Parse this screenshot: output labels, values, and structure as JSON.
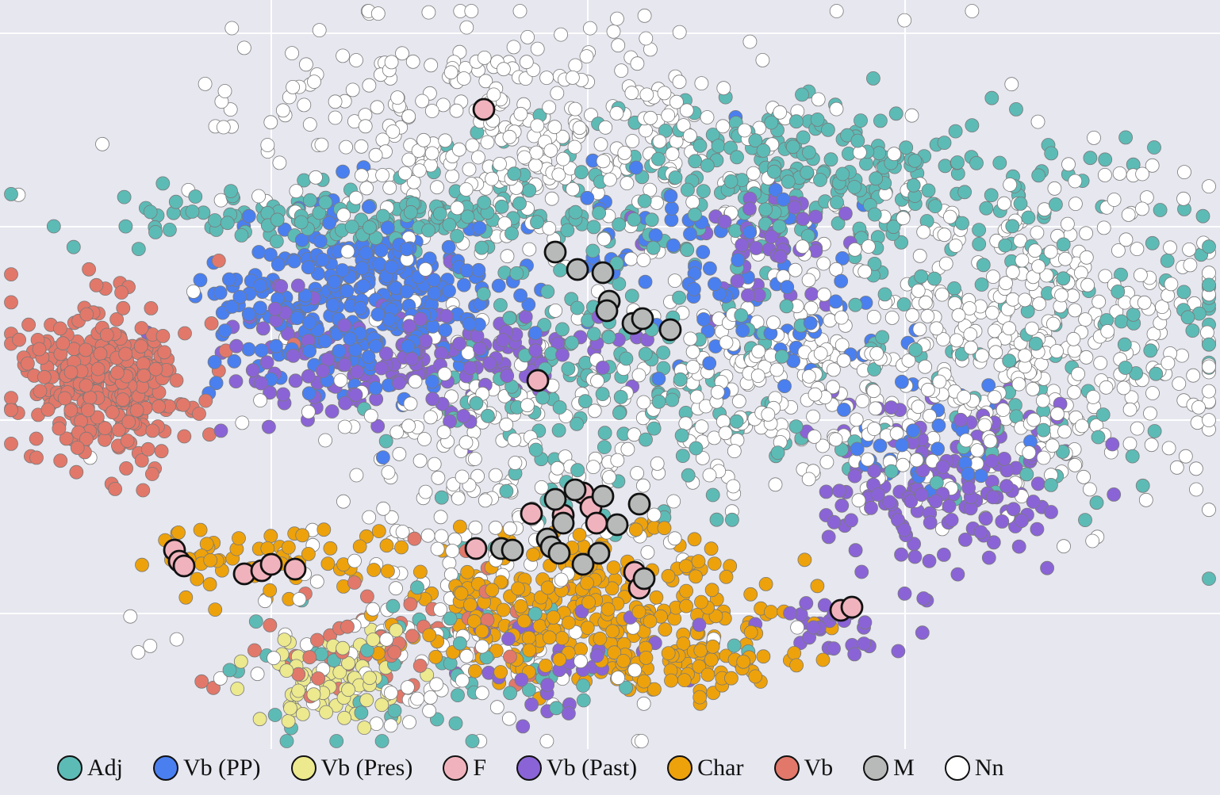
{
  "chart_data": {
    "type": "scatter",
    "title": "",
    "xlabel": "",
    "ylabel": "",
    "grid": true,
    "axes_ticks_visible": false,
    "legend_position": "bottom",
    "series": [
      {
        "name": "Adj",
        "color": "#5dbbb6",
        "highlight": false
      },
      {
        "name": "Vb (PP)",
        "color": "#4a7ff0",
        "highlight": false
      },
      {
        "name": "Vb (Pres)",
        "color": "#ece98e",
        "highlight": false
      },
      {
        "name": "F",
        "color": "#f0b3bd",
        "highlight": true
      },
      {
        "name": "Vb (Past)",
        "color": "#8a64d6",
        "highlight": false
      },
      {
        "name": "Char",
        "color": "#eda20c",
        "highlight": false
      },
      {
        "name": "Vb",
        "color": "#e2786a",
        "highlight": false
      },
      {
        "name": "M",
        "color": "#b8b9b9",
        "highlight": true
      },
      {
        "name": "Nn",
        "color": "#ffffff",
        "highlight": false
      }
    ],
    "clusters": [
      {
        "series": "Nn",
        "cx": 650,
        "cy": 165,
        "sx": 180,
        "sy": 70,
        "n": 380
      },
      {
        "series": "Nn",
        "cx": 1300,
        "cy": 420,
        "sx": 130,
        "sy": 110,
        "n": 420
      },
      {
        "series": "Nn",
        "cx": 1000,
        "cy": 470,
        "sx": 110,
        "sy": 80,
        "n": 220
      },
      {
        "series": "Nn",
        "cx": 640,
        "cy": 560,
        "sx": 140,
        "sy": 110,
        "n": 250
      },
      {
        "series": "Nn",
        "cx": 560,
        "cy": 820,
        "sx": 150,
        "sy": 70,
        "n": 90
      },
      {
        "series": "Adj",
        "cx": 1000,
        "cy": 220,
        "sx": 150,
        "sy": 45,
        "n": 260
      },
      {
        "series": "Adj",
        "cx": 460,
        "cy": 275,
        "sx": 150,
        "sy": 20,
        "n": 150
      },
      {
        "series": "Adj",
        "cx": 760,
        "cy": 470,
        "sx": 130,
        "sy": 120,
        "n": 200
      },
      {
        "series": "Adj",
        "cx": 1280,
        "cy": 430,
        "sx": 170,
        "sy": 110,
        "n": 150
      },
      {
        "series": "Adj",
        "cx": 560,
        "cy": 840,
        "sx": 130,
        "sy": 60,
        "n": 60
      },
      {
        "series": "Vb (PP)",
        "cx": 450,
        "cy": 380,
        "sx": 90,
        "sy": 55,
        "n": 330
      },
      {
        "series": "Vb (PP)",
        "cx": 870,
        "cy": 330,
        "sx": 90,
        "sy": 60,
        "n": 70
      },
      {
        "series": "Vb (PP)",
        "cx": 1150,
        "cy": 560,
        "sx": 60,
        "sy": 40,
        "n": 40
      },
      {
        "series": "Vb (PP)",
        "cx": 1000,
        "cy": 440,
        "sx": 60,
        "sy": 40,
        "n": 30
      },
      {
        "series": "Vb (Past)",
        "cx": 500,
        "cy": 455,
        "sx": 110,
        "sy": 40,
        "n": 150
      },
      {
        "series": "Vb (Past)",
        "cx": 1200,
        "cy": 600,
        "sx": 90,
        "sy": 60,
        "n": 160
      },
      {
        "series": "Vb (Past)",
        "cx": 960,
        "cy": 320,
        "sx": 60,
        "sy": 40,
        "n": 50
      },
      {
        "series": "Vb (Past)",
        "cx": 690,
        "cy": 840,
        "sx": 60,
        "sy": 30,
        "n": 40
      },
      {
        "series": "Vb (Past)",
        "cx": 1050,
        "cy": 790,
        "sx": 35,
        "sy": 15,
        "n": 25
      },
      {
        "series": "Vb (Past)",
        "cx": 680,
        "cy": 440,
        "sx": 60,
        "sy": 25,
        "n": 30
      },
      {
        "series": "Vb",
        "cx": 135,
        "cy": 480,
        "sx": 55,
        "sy": 50,
        "n": 320
      },
      {
        "series": "Vb",
        "cx": 480,
        "cy": 800,
        "sx": 100,
        "sy": 50,
        "n": 60
      },
      {
        "series": "Char",
        "cx": 740,
        "cy": 770,
        "sx": 120,
        "sy": 45,
        "n": 320
      },
      {
        "series": "Char",
        "cx": 330,
        "cy": 710,
        "sx": 70,
        "sy": 25,
        "n": 60
      },
      {
        "series": "Char",
        "cx": 880,
        "cy": 840,
        "sx": 60,
        "sy": 25,
        "n": 50
      },
      {
        "series": "Vb (Pres)",
        "cx": 420,
        "cy": 860,
        "sx": 50,
        "sy": 30,
        "n": 80
      }
    ],
    "marked_points": [
      {
        "series": "F",
        "xy": [
          [
            610,
            138
          ],
          [
            678,
            480
          ],
          [
            220,
            694
          ],
          [
            226,
            708
          ],
          [
            232,
            714
          ],
          [
            308,
            724
          ],
          [
            330,
            720
          ],
          [
            342,
            712
          ],
          [
            372,
            718
          ],
          [
            600,
            692
          ],
          [
            670,
            648
          ],
          [
            710,
            650
          ],
          [
            735,
            622
          ],
          [
            745,
            640
          ],
          [
            752,
            660
          ],
          [
            800,
            722
          ],
          [
            806,
            742
          ],
          [
            1060,
            770
          ],
          [
            1074,
            766
          ]
        ]
      },
      {
        "series": "M",
        "xy": [
          [
            700,
            318
          ],
          [
            728,
            340
          ],
          [
            760,
            344
          ],
          [
            768,
            380
          ],
          [
            765,
            392
          ],
          [
            798,
            408
          ],
          [
            810,
            402
          ],
          [
            845,
            416
          ],
          [
            700,
            630
          ],
          [
            710,
            660
          ],
          [
            725,
            618
          ],
          [
            760,
            626
          ],
          [
            806,
            636
          ],
          [
            778,
            662
          ],
          [
            690,
            680
          ],
          [
            695,
            690
          ],
          [
            705,
            698
          ],
          [
            632,
            692
          ],
          [
            646,
            694
          ],
          [
            755,
            698
          ],
          [
            735,
            712
          ],
          [
            812,
            730
          ]
        ]
      }
    ]
  },
  "legend": {
    "items": [
      {
        "label": "Adj",
        "color": "#5dbbb6"
      },
      {
        "label": "Vb (PP)",
        "color": "#4a7ff0"
      },
      {
        "label": "Vb (Pres)",
        "color": "#ece98e"
      },
      {
        "label": "F",
        "color": "#f0b3bd"
      },
      {
        "label": "Vb (Past)",
        "color": "#8a64d6"
      },
      {
        "label": "Char",
        "color": "#eda20c"
      },
      {
        "label": "Vb",
        "color": "#e2786a"
      },
      {
        "label": "M",
        "color": "#b8b9b9"
      },
      {
        "label": "Nn",
        "color": "#ffffff"
      }
    ]
  }
}
